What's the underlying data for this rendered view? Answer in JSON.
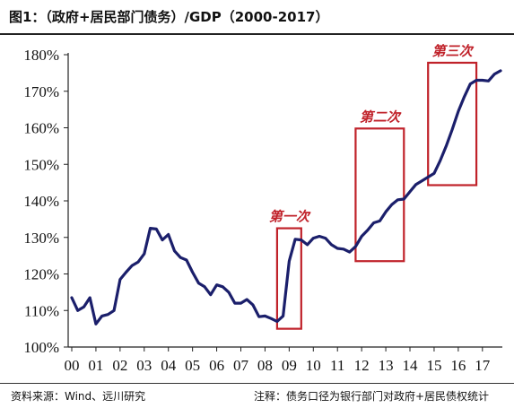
{
  "title": "图1：（政府+居民部门债务）/GDP（2000-2017）",
  "footer": {
    "source": "资料来源：Wind、远川研究",
    "note": "注释：债务口径为银行部门对政府+居民债权统计"
  },
  "colors": {
    "line": "#1b1f6b",
    "box": "#c0222a"
  },
  "chart_data": {
    "type": "line",
    "title": "图1：（政府+居民部门债务）/GDP（2000-2017）",
    "xlabel": "",
    "ylabel": "",
    "ylim": [
      100,
      180
    ],
    "y_ticks": [
      "100%",
      "110%",
      "120%",
      "130%",
      "140%",
      "150%",
      "160%",
      "170%",
      "180%"
    ],
    "x_ticks": [
      "00",
      "01",
      "02",
      "03",
      "04",
      "05",
      "06",
      "07",
      "08",
      "09",
      "10",
      "11",
      "12",
      "13",
      "14",
      "15",
      "16",
      "17"
    ],
    "x_range": [
      2000,
      2017.75
    ],
    "grid": false,
    "series": [
      {
        "values": [
          [
            2000.0,
            113.5
          ],
          [
            2000.25,
            110.0
          ],
          [
            2000.5,
            111.0
          ],
          [
            2000.75,
            113.5
          ],
          [
            2001.0,
            106.3
          ],
          [
            2001.25,
            108.5
          ],
          [
            2001.5,
            108.9
          ],
          [
            2001.75,
            110.0
          ],
          [
            2002.0,
            118.5
          ],
          [
            2002.25,
            120.5
          ],
          [
            2002.5,
            122.3
          ],
          [
            2002.75,
            123.3
          ],
          [
            2003.0,
            125.5
          ],
          [
            2003.25,
            132.5
          ],
          [
            2003.5,
            132.3
          ],
          [
            2003.75,
            129.3
          ],
          [
            2004.0,
            130.8
          ],
          [
            2004.25,
            126.3
          ],
          [
            2004.5,
            124.5
          ],
          [
            2004.75,
            123.8
          ],
          [
            2005.0,
            120.5
          ],
          [
            2005.25,
            117.5
          ],
          [
            2005.5,
            116.5
          ],
          [
            2005.75,
            114.3
          ],
          [
            2006.0,
            117.0
          ],
          [
            2006.25,
            116.5
          ],
          [
            2006.5,
            115.0
          ],
          [
            2006.75,
            112.0
          ],
          [
            2007.0,
            112.0
          ],
          [
            2007.25,
            113.0
          ],
          [
            2007.5,
            111.5
          ],
          [
            2007.75,
            108.3
          ],
          [
            2008.0,
            108.5
          ],
          [
            2008.25,
            107.8
          ],
          [
            2008.5,
            107.0
          ],
          [
            2008.75,
            108.5
          ],
          [
            2009.0,
            123.5
          ],
          [
            2009.25,
            129.5
          ],
          [
            2009.5,
            129.3
          ],
          [
            2009.75,
            128.0
          ],
          [
            2010.0,
            129.8
          ],
          [
            2010.25,
            130.3
          ],
          [
            2010.5,
            129.8
          ],
          [
            2010.75,
            128.0
          ],
          [
            2011.0,
            127.0
          ],
          [
            2011.25,
            126.8
          ],
          [
            2011.5,
            126.0
          ],
          [
            2011.75,
            127.5
          ],
          [
            2012.0,
            130.3
          ],
          [
            2012.25,
            132.0
          ],
          [
            2012.5,
            134.0
          ],
          [
            2012.75,
            134.5
          ],
          [
            2013.0,
            137.0
          ],
          [
            2013.25,
            139.0
          ],
          [
            2013.5,
            140.3
          ],
          [
            2013.75,
            140.5
          ],
          [
            2014.0,
            142.5
          ],
          [
            2014.25,
            144.5
          ],
          [
            2014.5,
            145.5
          ],
          [
            2014.75,
            146.5
          ],
          [
            2015.0,
            147.5
          ],
          [
            2015.25,
            151.0
          ],
          [
            2015.5,
            155.0
          ],
          [
            2015.75,
            159.5
          ],
          [
            2016.0,
            164.5
          ],
          [
            2016.25,
            168.5
          ],
          [
            2016.5,
            172.0
          ],
          [
            2016.75,
            173.0
          ],
          [
            2017.0,
            173.0
          ],
          [
            2017.25,
            172.8
          ],
          [
            2017.5,
            174.7
          ],
          [
            2017.75,
            175.6
          ]
        ]
      }
    ],
    "annotations": [
      {
        "label": "第一次",
        "x": [
          2008.5,
          2009.5
        ],
        "y": [
          105,
          132.5
        ]
      },
      {
        "label": "第二次",
        "x": [
          2011.75,
          2013.75
        ],
        "y": [
          123.5,
          159.8
        ]
      },
      {
        "label": "第三次",
        "x": [
          2014.75,
          2016.75
        ],
        "y": [
          144.3,
          177.8
        ]
      }
    ]
  }
}
